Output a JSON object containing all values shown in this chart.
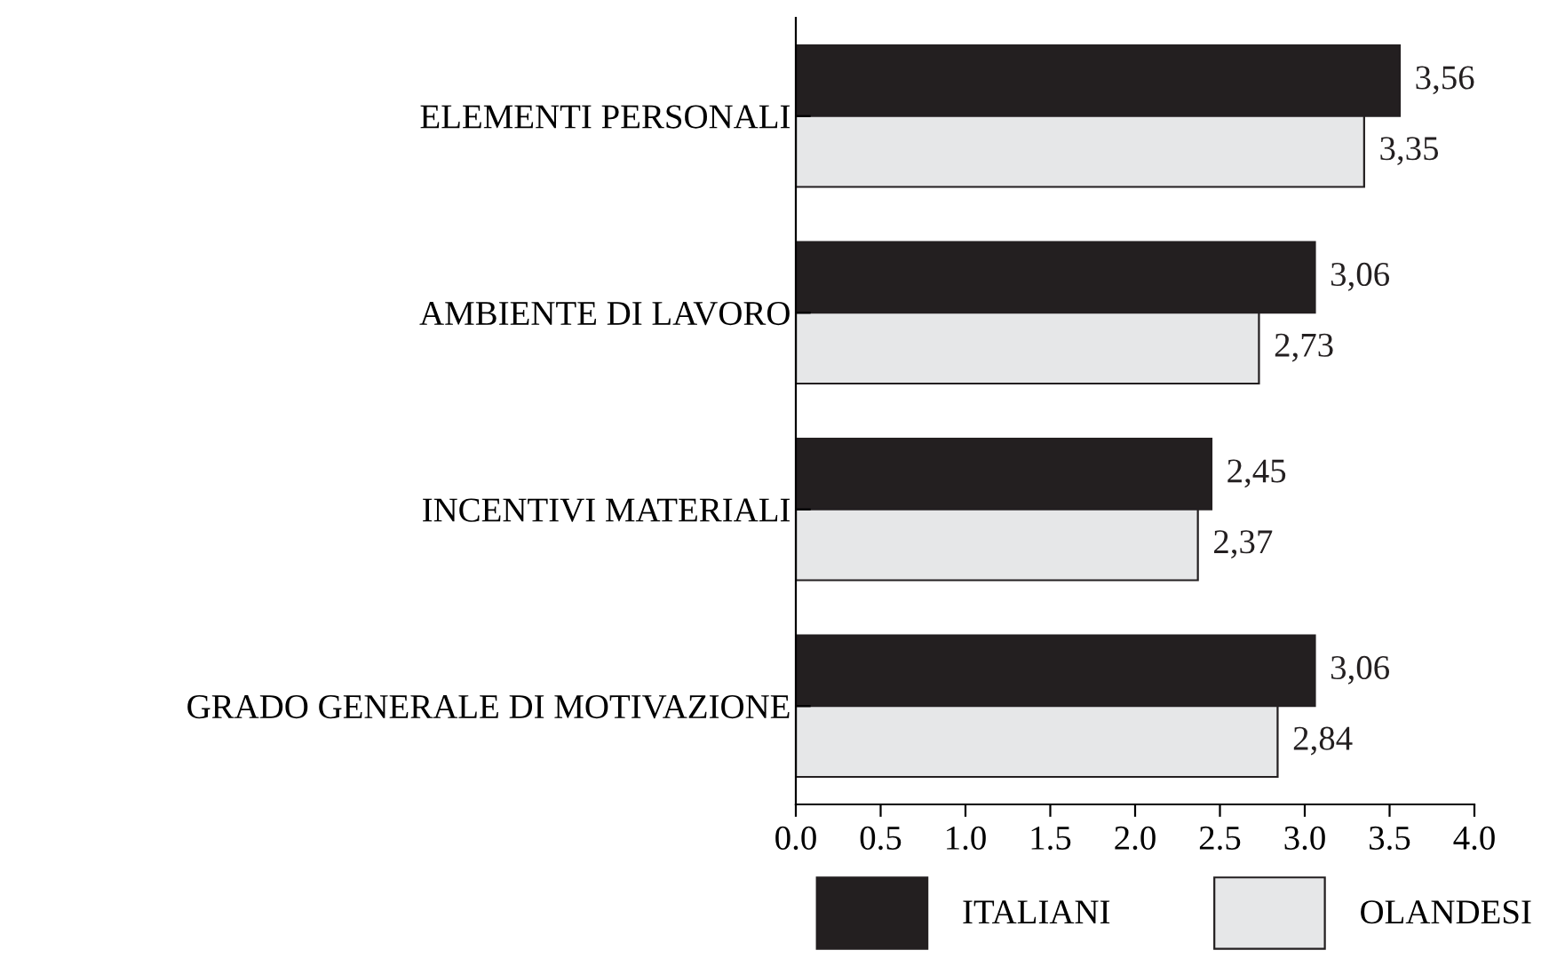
{
  "chart_data": {
    "type": "bar",
    "orientation": "horizontal",
    "categories": [
      "ELEMENTI PERSONALI",
      "AMBIENTE DI LAVORO",
      "INCENTIVI MATERIALI",
      "GRADO GENERALE DI MOTIVAZIONE"
    ],
    "series": [
      {
        "name": "ITALIANI",
        "color": "#231f20",
        "values": [
          3.56,
          3.06,
          2.45,
          3.06
        ],
        "value_labels": [
          "3,56",
          "3,06",
          "2,45",
          "3,06"
        ]
      },
      {
        "name": "OLANDESI",
        "color": "#e6e7e8",
        "values": [
          3.35,
          2.73,
          2.37,
          2.84
        ],
        "value_labels": [
          "3,35",
          "2,73",
          "2,37",
          "2,84"
        ]
      }
    ],
    "xlim": [
      0,
      4
    ],
    "xticks": [
      {
        "value": 0,
        "label": "0.0"
      },
      0.5,
      {
        "value": 1,
        "label": "1.0"
      },
      1.5,
      {
        "value": 2,
        "label": "2.0"
      },
      2.5,
      {
        "value": 3,
        "label": "3.0"
      },
      3.5,
      {
        "value": 4,
        "label": "4.0"
      }
    ],
    "grid": false,
    "legend": "bottom"
  }
}
